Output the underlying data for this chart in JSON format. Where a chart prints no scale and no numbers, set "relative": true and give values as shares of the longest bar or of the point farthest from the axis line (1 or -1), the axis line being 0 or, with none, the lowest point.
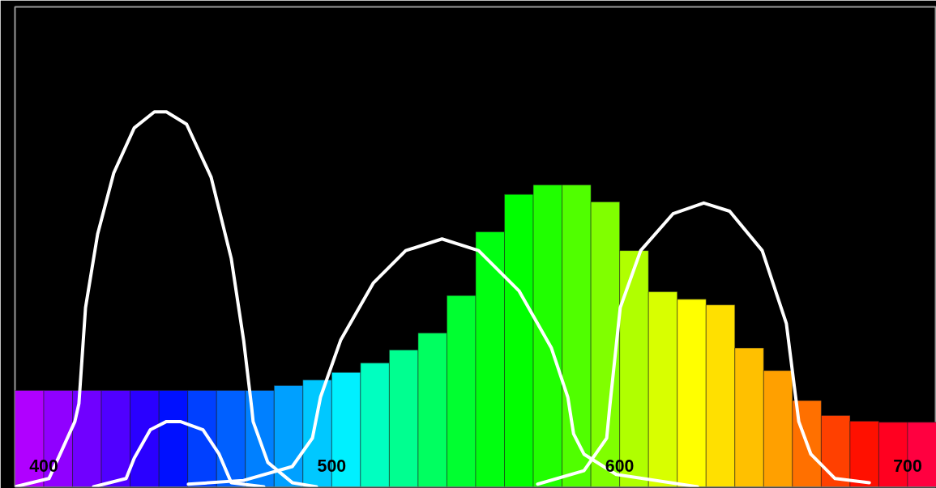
{
  "chart_data": {
    "type": "bar",
    "relative": true,
    "xlim": [
      390,
      710
    ],
    "xticks": [
      400,
      500,
      600,
      700
    ],
    "x": [
      395,
      405,
      415,
      425,
      435,
      445,
      455,
      465,
      475,
      485,
      495,
      505,
      515,
      525,
      535,
      545,
      555,
      565,
      575,
      585,
      595,
      605,
      615,
      625,
      635,
      645,
      655,
      665,
      675,
      685,
      695,
      705
    ],
    "values": [
      0.257,
      0.257,
      0.257,
      0.257,
      0.257,
      0.257,
      0.257,
      0.257,
      0.257,
      0.27,
      0.285,
      0.305,
      0.33,
      0.365,
      0.41,
      0.51,
      0.68,
      0.78,
      0.805,
      0.805,
      0.76,
      0.63,
      0.52,
      0.5,
      0.485,
      0.37,
      0.31,
      0.23,
      0.19,
      0.175,
      0.172,
      0.172
    ],
    "colors": [
      "#b000ff",
      "#9000ff",
      "#7000ff",
      "#5000ff",
      "#2a00ff",
      "#0010ff",
      "#0040ff",
      "#0060ff",
      "#0080ff",
      "#00a0ff",
      "#00c8ff",
      "#00f0ff",
      "#00ffc0",
      "#00ff90",
      "#00ff60",
      "#00ff30",
      "#00ff10",
      "#00ff00",
      "#20ff00",
      "#50ff00",
      "#80ff00",
      "#b0ff00",
      "#d8ff00",
      "#ffff00",
      "#ffe000",
      "#ffc000",
      "#ffa000",
      "#ff7000",
      "#ff4000",
      "#ff1000",
      "#ff0020",
      "#ff0040"
    ],
    "series": [
      {
        "type": "line",
        "color": "#ffffff",
        "x": [
          390,
          401.8,
          410.8,
          412.2,
          414.5,
          418.7,
          424.3,
          431.4,
          438.4,
          442.6,
          449.6,
          458.1,
          465.1,
          469.4,
          472.2,
          472.7,
          477.8,
          486.3,
          494.7
        ],
        "values": [
          0,
          0.022,
          0.174,
          0.222,
          0.478,
          0.674,
          0.837,
          0.957,
          1.0,
          1.0,
          0.967,
          0.826,
          0.609,
          0.391,
          0.211,
          0.174,
          0.065,
          0.011,
          0
        ]
      },
      {
        "type": "line",
        "color": "#ffffff",
        "x": [
          417.3,
          428.6,
          431.4,
          437.0,
          442.6,
          447.4,
          455.3,
          460.9,
          465.1,
          476.4
        ],
        "values": [
          0,
          0.022,
          0.076,
          0.152,
          0.174,
          0.174,
          0.152,
          0.087,
          0.011,
          0
        ]
      },
      {
        "type": "line",
        "color": "#ffffff",
        "x": [
          450.2,
          469.4,
          486.3,
          493.3,
          496.1,
          503.1,
          514.4,
          525.7,
          538.3,
          551.0,
          565.1,
          576.3,
          582.0,
          584.0,
          587.6,
          598.8,
          627.0
        ],
        "values": [
          0.007,
          0.017,
          0.054,
          0.13,
          0.239,
          0.391,
          0.543,
          0.63,
          0.661,
          0.63,
          0.522,
          0.37,
          0.239,
          0.141,
          0.087,
          0.033,
          0
        ]
      },
      {
        "type": "line",
        "color": "#ffffff",
        "x": [
          571.5,
          587.6,
          595.5,
          596.6,
          600.2,
          607.3,
          618.5,
          629.2,
          638.2,
          649.5,
          657.9,
          662.2,
          666.4,
          674.8,
          686.7
        ],
        "values": [
          0.007,
          0.043,
          0.13,
          0.217,
          0.478,
          0.63,
          0.728,
          0.757,
          0.735,
          0.63,
          0.435,
          0.174,
          0.087,
          0.022,
          0.011
        ]
      }
    ]
  }
}
